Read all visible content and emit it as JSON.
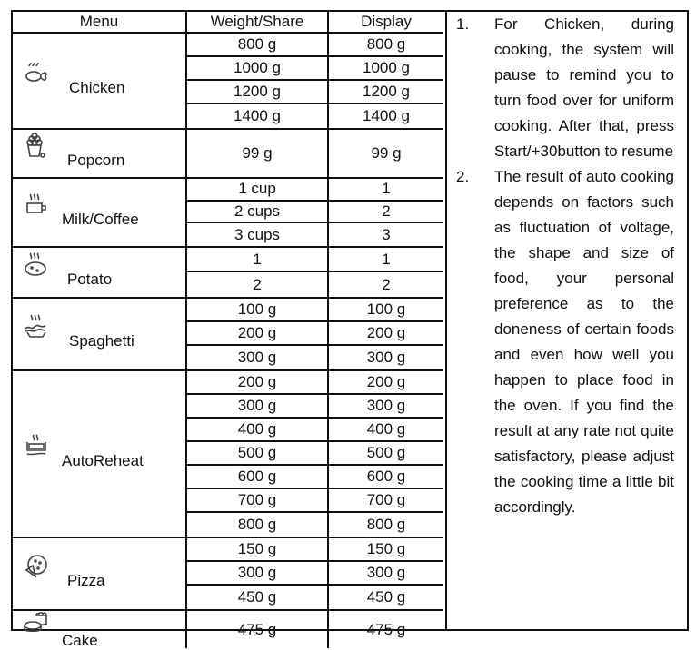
{
  "header": {
    "menu": "Menu",
    "weight": "Weight/Share",
    "display": "Display"
  },
  "rows": [
    {
      "menu": "Chicken",
      "icon": "chicken-icon",
      "items": [
        [
          "800 g",
          "800 g"
        ],
        [
          "1000 g",
          "1000 g"
        ],
        [
          "1200 g",
          "1200 g"
        ],
        [
          "1400 g",
          "1400 g"
        ]
      ]
    },
    {
      "menu": "Popcorn",
      "icon": "popcorn-icon",
      "items": [
        [
          "99 g",
          "99 g"
        ]
      ]
    },
    {
      "menu": "Milk/Coffee",
      "icon": "cup-icon",
      "items": [
        [
          "1 cup",
          "1"
        ],
        [
          "2 cups",
          "2"
        ],
        [
          "3 cups",
          "3"
        ]
      ]
    },
    {
      "menu": "Potato",
      "icon": "potato-icon",
      "items": [
        [
          "1",
          "1"
        ],
        [
          "2",
          "2"
        ]
      ]
    },
    {
      "menu": "Spaghetti",
      "icon": "spaghetti-icon",
      "items": [
        [
          "100 g",
          "100 g"
        ],
        [
          "200 g",
          "200 g"
        ],
        [
          "300 g",
          "300 g"
        ]
      ]
    },
    {
      "menu": "AutoReheat",
      "icon": "auto-reheat-icon",
      "items": [
        [
          "200 g",
          "200 g"
        ],
        [
          "300 g",
          "300 g"
        ],
        [
          "400 g",
          "400 g"
        ],
        [
          "500 g",
          "500 g"
        ],
        [
          "600 g",
          "600 g"
        ],
        [
          "700 g",
          "700 g"
        ],
        [
          "800 g",
          "800 g"
        ]
      ]
    },
    {
      "menu": "Pizza",
      "icon": "pizza-icon",
      "items": [
        [
          "150 g",
          "150 g"
        ],
        [
          "300 g",
          "300 g"
        ],
        [
          "450 g",
          "450 g"
        ]
      ]
    },
    {
      "menu": "Cake",
      "icon": "cake-icon",
      "items": [
        [
          "475 g",
          "475 g"
        ]
      ]
    }
  ],
  "notes": [
    {
      "num": "1.",
      "text": "For Chicken, during cooking, the system will pause to remind you to turn food over for uniform cooking. After that, press Start/+30button to resume"
    },
    {
      "num": "2.",
      "text": "The result of auto cooking depends on factors such as fluctuation of voltage, the shape and size of food, your personal preference as to the doneness of certain foods and even how well you happen to place food in the oven. If you find the result at any rate not quite satisfactory, please adjust the cooking time a little bit accordingly."
    }
  ]
}
